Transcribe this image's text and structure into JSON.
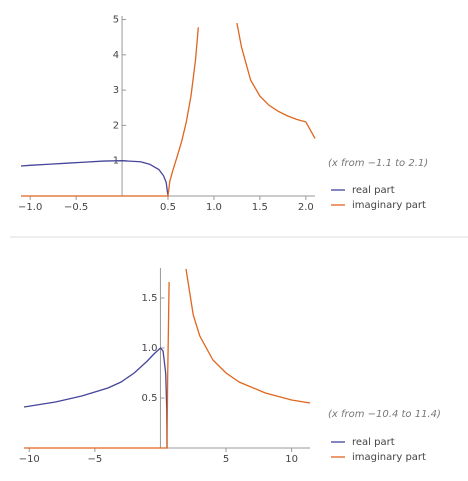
{
  "chart_data": [
    {
      "type": "line",
      "range_note": "(x from −1.1 to 2.1)",
      "xlim": [
        -1.1,
        2.1
      ],
      "ylim": [
        0,
        5.1
      ],
      "xticks": [
        {
          "value": -1,
          "label": "−1.0"
        },
        {
          "value": -0.5,
          "label": "−0.5"
        },
        0.5,
        {
          "value": 1,
          "label": "1.0"
        },
        1.5,
        {
          "value": 2,
          "label": "2.0"
        }
      ],
      "yticks": [
        1,
        2,
        3,
        4,
        5
      ],
      "series": [
        {
          "name": "real part",
          "color": "#45459a",
          "x": [
            -1.1,
            -1,
            -0.8,
            -0.6,
            -0.4,
            -0.2,
            0,
            0.2,
            0.3,
            0.4,
            0.45,
            0.48,
            0.5
          ],
          "values": [
            0.85,
            0.87,
            0.9,
            0.93,
            0.96,
            0.99,
            1,
            0.97,
            0.9,
            0.75,
            0.58,
            0.39,
            0
          ]
        },
        {
          "name": "imaginary part",
          "color": "#e0651e",
          "x": [
            -1.1,
            0.5,
            0.52,
            0.55,
            0.6,
            0.65,
            0.7,
            0.75,
            0.8,
            0.83,
            null,
            1.25,
            1.3,
            1.4,
            1.5,
            1.6,
            1.7,
            1.8,
            1.9,
            2.0,
            2.1
          ],
          "values": [
            0,
            0,
            0.42,
            0.7,
            1.12,
            1.56,
            2.11,
            2.83,
            3.87,
            4.78,
            null,
            4.9,
            4.22,
            3.28,
            2.83,
            2.57,
            2.4,
            2.27,
            2.17,
            2.1,
            1.63
          ]
        }
      ]
    },
    {
      "type": "line",
      "range_note": "(x from −10.4 to 11.4)",
      "xlim": [
        -10.4,
        11.4
      ],
      "ylim": [
        0,
        1.8
      ],
      "xticks": [
        {
          "value": -10,
          "label": "−10"
        },
        {
          "value": -5,
          "label": "−5"
        },
        5,
        10
      ],
      "yticks": [
        0.5,
        {
          "value": 1,
          "label": "1.0"
        },
        1.5
      ],
      "series": [
        {
          "name": "real part",
          "color": "#45459a",
          "x": [
            -10.4,
            -8,
            -6,
            -4,
            -3,
            -2,
            -1,
            -0.5,
            0,
            0.2,
            0.4,
            0.48,
            0.5
          ],
          "values": [
            0.41,
            0.46,
            0.52,
            0.6,
            0.66,
            0.75,
            0.87,
            0.94,
            1,
            0.97,
            0.75,
            0.39,
            0
          ]
        },
        {
          "name": "imaginary part",
          "color": "#e0651e",
          "x": [
            -10.4,
            0.5,
            0.55,
            0.6,
            0.66,
            null,
            1.95,
            2.5,
            3,
            4,
            5,
            6,
            8,
            10,
            11.4
          ],
          "values": [
            0,
            0,
            0.7,
            1.12,
            1.66,
            null,
            1.79,
            1.33,
            1.12,
            0.88,
            0.75,
            0.66,
            0.55,
            0.48,
            0.45
          ]
        }
      ]
    }
  ]
}
